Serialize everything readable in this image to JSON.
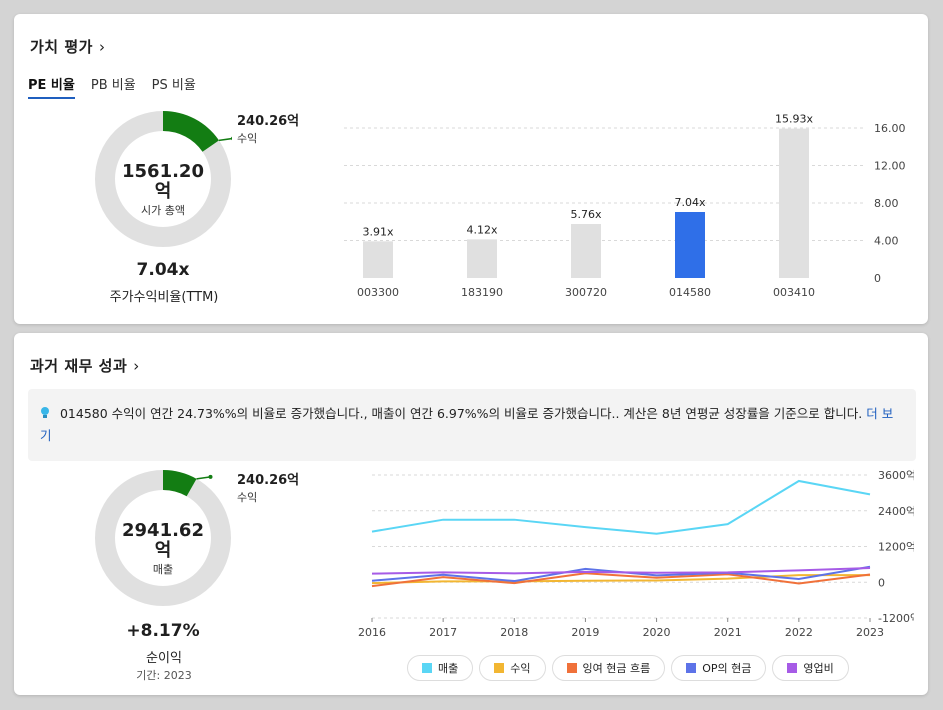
{
  "valuation": {
    "title": "가치 평가",
    "chevron": "›",
    "tabs": [
      {
        "label": "PE 비율",
        "active": true
      },
      {
        "label": "PB 비율",
        "active": false
      },
      {
        "label": "PS 비율",
        "active": false
      }
    ],
    "donut": {
      "center_value": "1561.20",
      "center_unit": "억",
      "center_label": "시가 총액",
      "side_value": "240.26억",
      "side_label": "수익",
      "fill_fraction": 0.154,
      "fill_color": "#137d13",
      "track_color": "#e0e0e0"
    },
    "ratio_value": "7.04x",
    "ratio_label": "주가수익비율(TTM)"
  },
  "chart_data": [
    {
      "type": "bar",
      "categories": [
        "003300",
        "183190",
        "300720",
        "014580",
        "003410"
      ],
      "values": [
        3.91,
        4.12,
        5.76,
        7.04,
        15.93
      ],
      "value_labels": [
        "3.91x",
        "4.12x",
        "5.76x",
        "7.04x",
        "15.93x"
      ],
      "highlight_index": 3,
      "highlight_color": "#2f6fe8",
      "bar_color": "#e0e0e0",
      "ylim": [
        0,
        16
      ],
      "yticks": [
        "0",
        "4.00",
        "8.00",
        "12.00",
        "16.00"
      ],
      "ytick_values": [
        0,
        4,
        8,
        12,
        16
      ],
      "grid": true
    },
    {
      "type": "line",
      "x": [
        "2016",
        "2017",
        "2018",
        "2019",
        "2020",
        "2021",
        "2022",
        "2023"
      ],
      "ylim": [
        -1200,
        3600
      ],
      "yticks": [
        "3600억",
        "2400억",
        "1200억",
        "0",
        "-1200억"
      ],
      "ytick_values": [
        3600,
        2400,
        1200,
        0,
        -1200
      ],
      "grid": true,
      "series": [
        {
          "name": "매출",
          "color": "#5ad6f5",
          "values": [
            1700,
            2100,
            2100,
            1850,
            1630,
            1950,
            3400,
            2950
          ]
        },
        {
          "name": "수익",
          "color": "#f2b632",
          "values": [
            -30,
            30,
            30,
            50,
            60,
            120,
            240,
            240
          ]
        },
        {
          "name": "잉여 현금 흐름",
          "color": "#f0713a",
          "values": [
            -130,
            170,
            -30,
            300,
            150,
            270,
            -40,
            260
          ]
        },
        {
          "name": "OP의 현금",
          "color": "#5d73e8",
          "values": [
            50,
            250,
            40,
            450,
            230,
            320,
            110,
            520
          ]
        },
        {
          "name": "영업비",
          "color": "#a65be6",
          "values": [
            290,
            330,
            300,
            350,
            320,
            330,
            400,
            480
          ]
        }
      ]
    }
  ],
  "performance": {
    "title": "과거 재무 성과",
    "chevron": "›",
    "insight_text": "014580 수익이 연간 24.73%%의 비율로 증가했습니다., 매출이 연간 6.97%%의 비율로 증가했습니다.. 계산은 8년 연평균 성장률을 기준으로 합니다.",
    "insight_more": "더 보기",
    "bulb_icon": "lightbulb-icon",
    "donut": {
      "center_value": "2941.62",
      "center_unit": "억",
      "center_label": "매출",
      "side_value": "240.26억",
      "side_label": "수익",
      "fill_fraction": 0.082,
      "fill_color": "#137d13",
      "track_color": "#e0e0e0"
    },
    "growth_value": "+8.17%",
    "growth_label": "순이익",
    "period_label": "기간: 2023"
  }
}
